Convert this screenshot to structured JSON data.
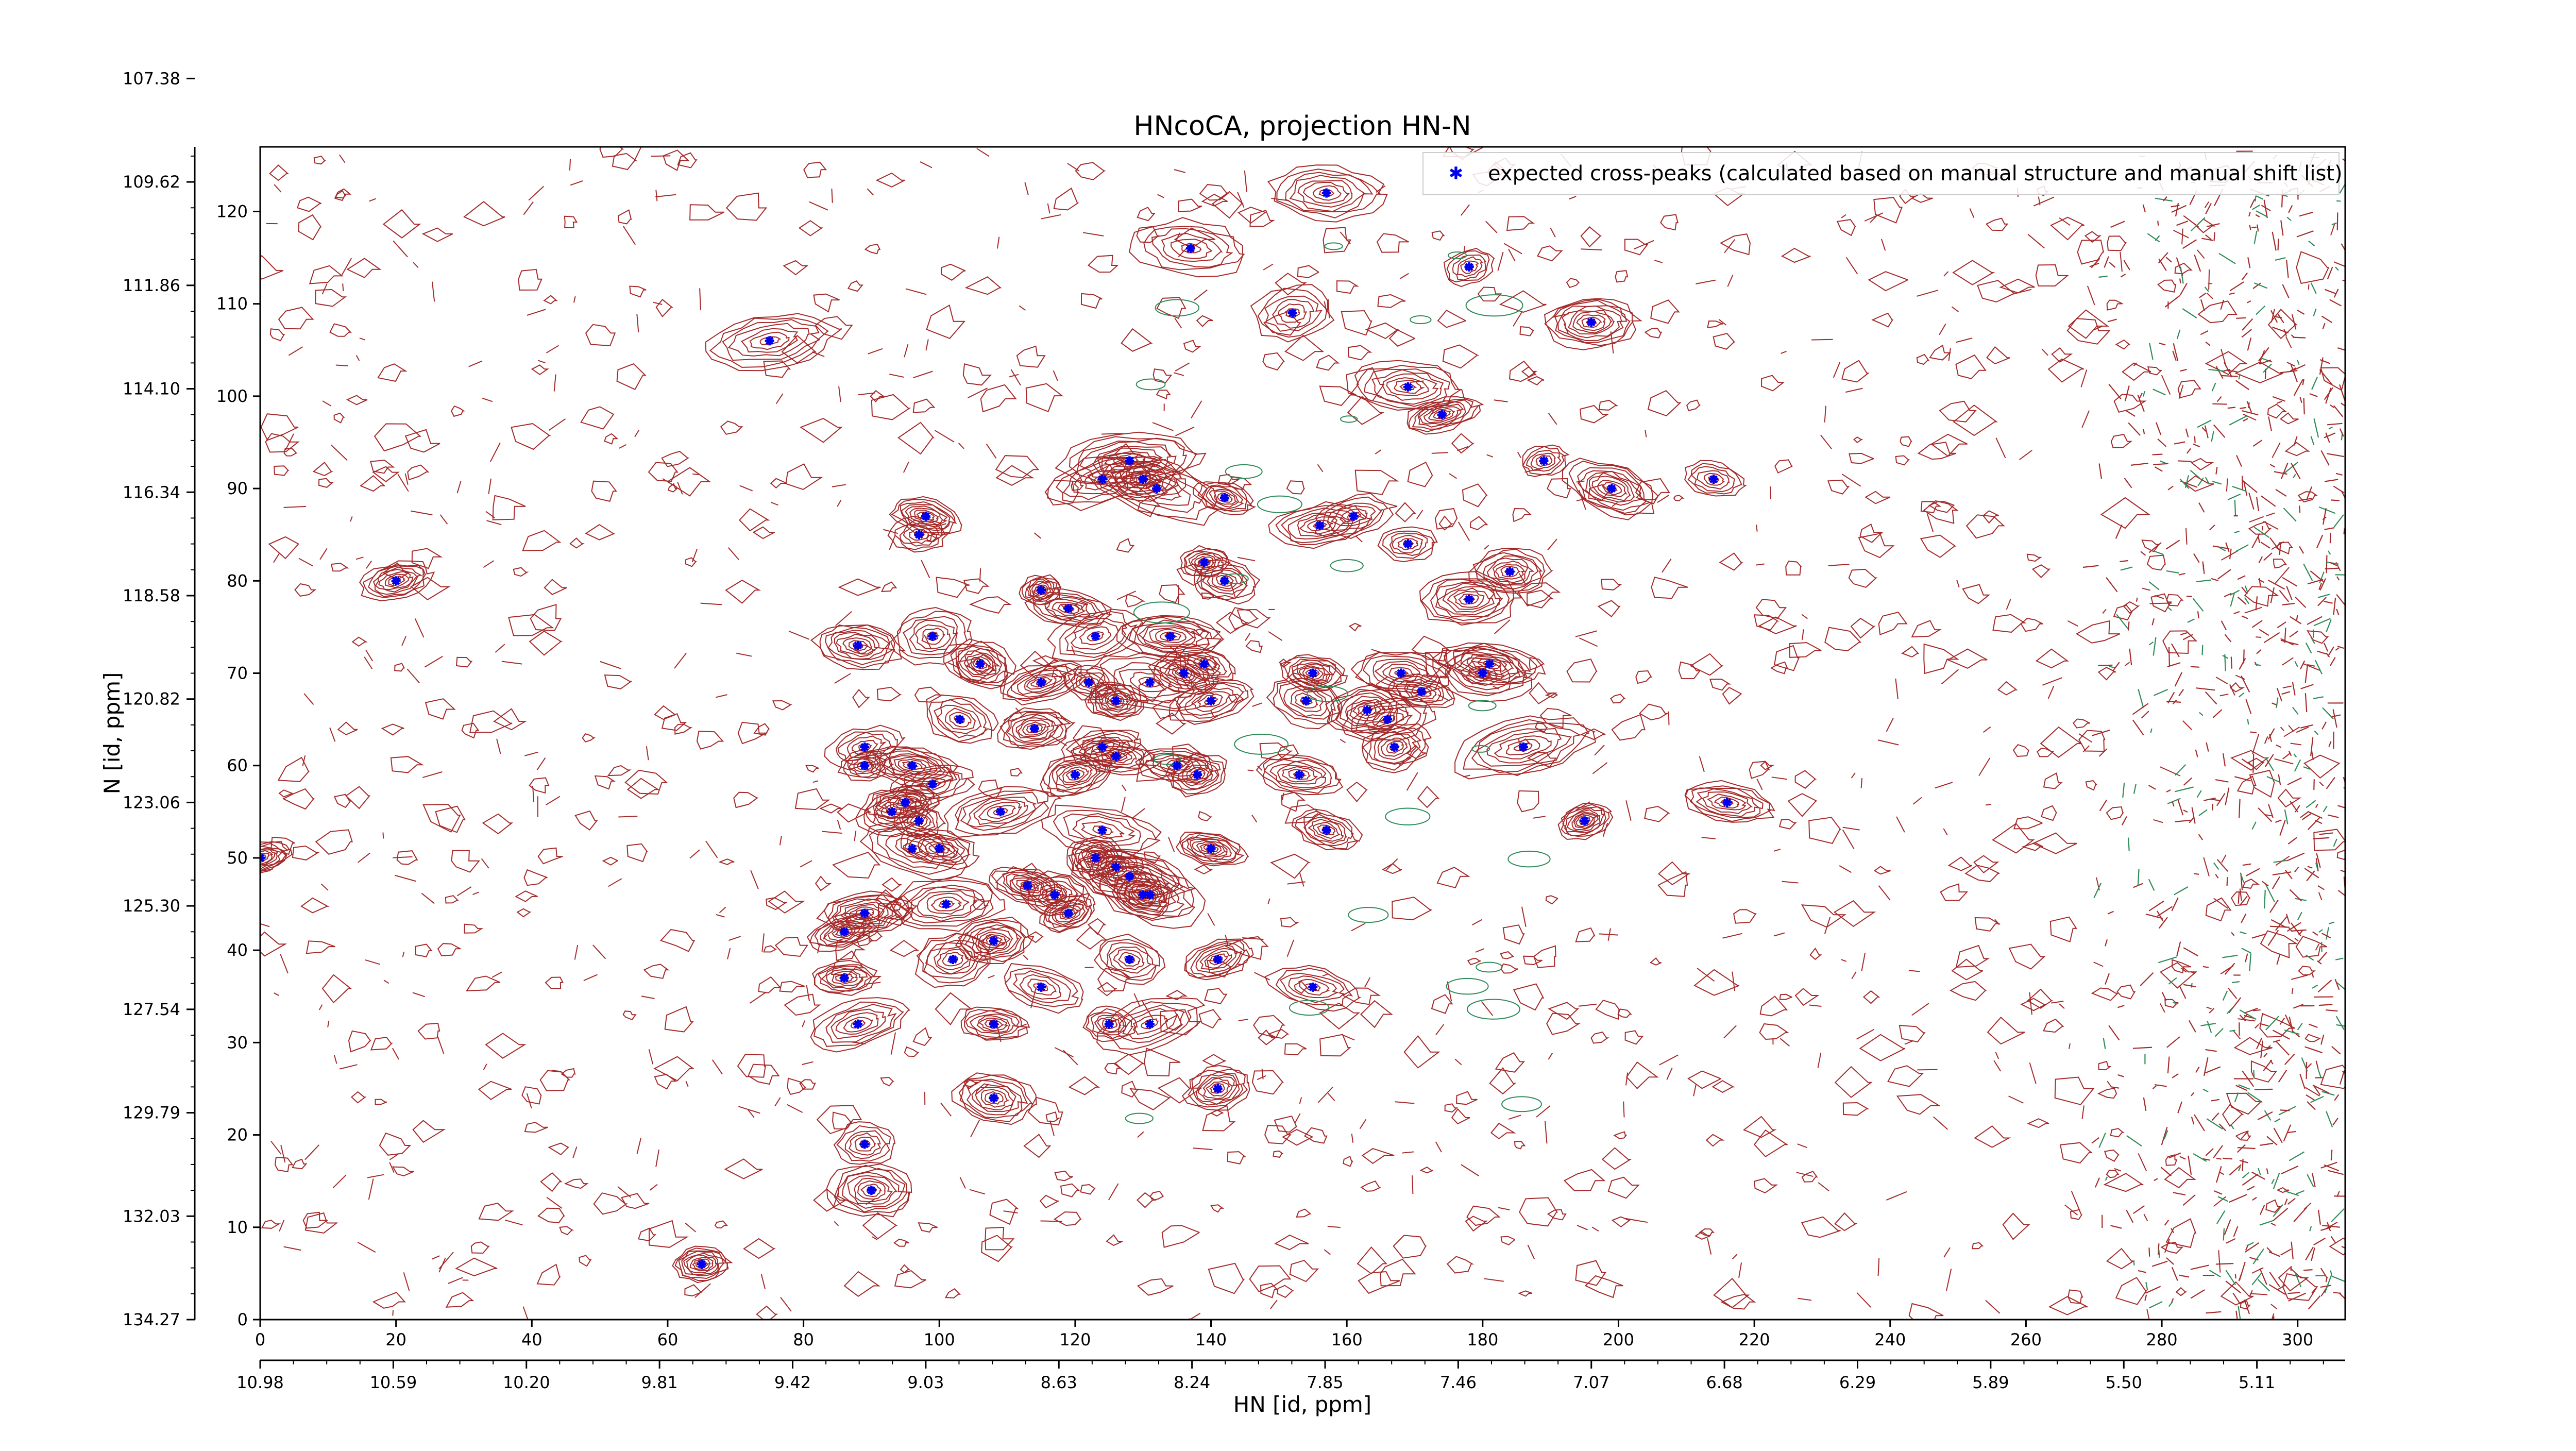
{
  "chart_data": {
    "type": "scatter",
    "title": "HNcoCA, projection HN-N",
    "xlabel": "HN [id, ppm]",
    "ylabel": "N [id, ppm]",
    "x_index_range": [
      0,
      307
    ],
    "y_index_range": [
      0,
      127
    ],
    "x_index_ticks": [
      "0",
      "20",
      "40",
      "60",
      "80",
      "100",
      "120",
      "140",
      "160",
      "180",
      "200",
      "220",
      "240",
      "260",
      "280",
      "300"
    ],
    "x_ppm_ticks": [
      {
        "idx": 0,
        "label": "10.98"
      },
      {
        "idx": 19.6,
        "label": "10.59"
      },
      {
        "idx": 39.2,
        "label": "10.20"
      },
      {
        "idx": 58.8,
        "label": "9.81"
      },
      {
        "idx": 78.4,
        "label": "9.42"
      },
      {
        "idx": 98.0,
        "label": "9.03"
      },
      {
        "idx": 117.6,
        "label": "8.63"
      },
      {
        "idx": 137.2,
        "label": "8.24"
      },
      {
        "idx": 156.8,
        "label": "7.85"
      },
      {
        "idx": 176.4,
        "label": "7.46"
      },
      {
        "idx": 196.0,
        "label": "7.07"
      },
      {
        "idx": 215.6,
        "label": "6.68"
      },
      {
        "idx": 235.2,
        "label": "6.29"
      },
      {
        "idx": 254.8,
        "label": "5.89"
      },
      {
        "idx": 274.4,
        "label": "5.50"
      },
      {
        "idx": 294.0,
        "label": "5.11"
      }
    ],
    "y_index_ticks": [
      "0",
      "10",
      "20",
      "30",
      "40",
      "50",
      "60",
      "70",
      "80",
      "90",
      "100",
      "110",
      "120"
    ],
    "y_ppm_ticks": [
      {
        "idx": 0,
        "label": "134.27"
      },
      {
        "idx": 11.2,
        "label": "132.03"
      },
      {
        "idx": 22.4,
        "label": "129.79"
      },
      {
        "idx": 33.6,
        "label": "127.54"
      },
      {
        "idx": 44.8,
        "label": "125.30"
      },
      {
        "idx": 56.0,
        "label": "123.06"
      },
      {
        "idx": 67.2,
        "label": "120.82"
      },
      {
        "idx": 78.4,
        "label": "118.58"
      },
      {
        "idx": 89.6,
        "label": "116.34"
      },
      {
        "idx": 100.8,
        "label": "114.10"
      },
      {
        "idx": 112.0,
        "label": "111.86"
      },
      {
        "idx": 123.2,
        "label": "109.62"
      },
      {
        "idx": 134.4,
        "label": "107.38"
      }
    ],
    "legend": {
      "label": "expected cross-peaks (calculated based on manual structure and manual shift list)",
      "position": "upper-right"
    },
    "colors": {
      "positive_contours": "#a52a2a",
      "negative_contours": "#2e8b57",
      "markers": "#0000ee"
    },
    "series": [
      {
        "name": "expected cross-peaks (calculated based on manual structure and manual shift list)",
        "points": [
          [
            157,
            122
          ],
          [
            137,
            116
          ],
          [
            178,
            114
          ],
          [
            152,
            109
          ],
          [
            75,
            106
          ],
          [
            196,
            108
          ],
          [
            169,
            101
          ],
          [
            174,
            98
          ],
          [
            189,
            93
          ],
          [
            199,
            90
          ],
          [
            214,
            91
          ],
          [
            124,
            91
          ],
          [
            128,
            93
          ],
          [
            130,
            91
          ],
          [
            132,
            90
          ],
          [
            142,
            89
          ],
          [
            98,
            87
          ],
          [
            97,
            85
          ],
          [
            156,
            86
          ],
          [
            161,
            87
          ],
          [
            169,
            84
          ],
          [
            184,
            81
          ],
          [
            139,
            82
          ],
          [
            142,
            80
          ],
          [
            20,
            80
          ],
          [
            115,
            79
          ],
          [
            119,
            77
          ],
          [
            178,
            78
          ],
          [
            88,
            73
          ],
          [
            99,
            74
          ],
          [
            123,
            74
          ],
          [
            134,
            74
          ],
          [
            106,
            71
          ],
          [
            139,
            71
          ],
          [
            181,
            71
          ],
          [
            180,
            70
          ],
          [
            155,
            70
          ],
          [
            168,
            70
          ],
          [
            115,
            69
          ],
          [
            122,
            69
          ],
          [
            131,
            69
          ],
          [
            136,
            70
          ],
          [
            171,
            68
          ],
          [
            154,
            67
          ],
          [
            140,
            67
          ],
          [
            126,
            67
          ],
          [
            103,
            65
          ],
          [
            114,
            64
          ],
          [
            163,
            66
          ],
          [
            166,
            65
          ],
          [
            124,
            62
          ],
          [
            126,
            61
          ],
          [
            89,
            62
          ],
          [
            89,
            60
          ],
          [
            96,
            60
          ],
          [
            99,
            58
          ],
          [
            120,
            59
          ],
          [
            135,
            60
          ],
          [
            138,
            59
          ],
          [
            153,
            59
          ],
          [
            186,
            62
          ],
          [
            167,
            62
          ],
          [
            95,
            56
          ],
          [
            97,
            54
          ],
          [
            93,
            55
          ],
          [
            109,
            55
          ],
          [
            124,
            53
          ],
          [
            157,
            53
          ],
          [
            195,
            54
          ],
          [
            216,
            56
          ],
          [
            96,
            51
          ],
          [
            100,
            51
          ],
          [
            140,
            51
          ],
          [
            123,
            50
          ],
          [
            126,
            49
          ],
          [
            128,
            48
          ],
          [
            113,
            47
          ],
          [
            117,
            46
          ],
          [
            130,
            46
          ],
          [
            131,
            46
          ],
          [
            101,
            45
          ],
          [
            89,
            44
          ],
          [
            86,
            42
          ],
          [
            119,
            44
          ],
          [
            108,
            41
          ],
          [
            102,
            39
          ],
          [
            128,
            39
          ],
          [
            141,
            39
          ],
          [
            86,
            37
          ],
          [
            115,
            36
          ],
          [
            155,
            36
          ],
          [
            88,
            32
          ],
          [
            108,
            32
          ],
          [
            125,
            32
          ],
          [
            131,
            32
          ],
          [
            141,
            25
          ],
          [
            108,
            24
          ],
          [
            89,
            19
          ],
          [
            90,
            14
          ],
          [
            65,
            6
          ],
          [
            0,
            50
          ]
        ]
      }
    ]
  }
}
